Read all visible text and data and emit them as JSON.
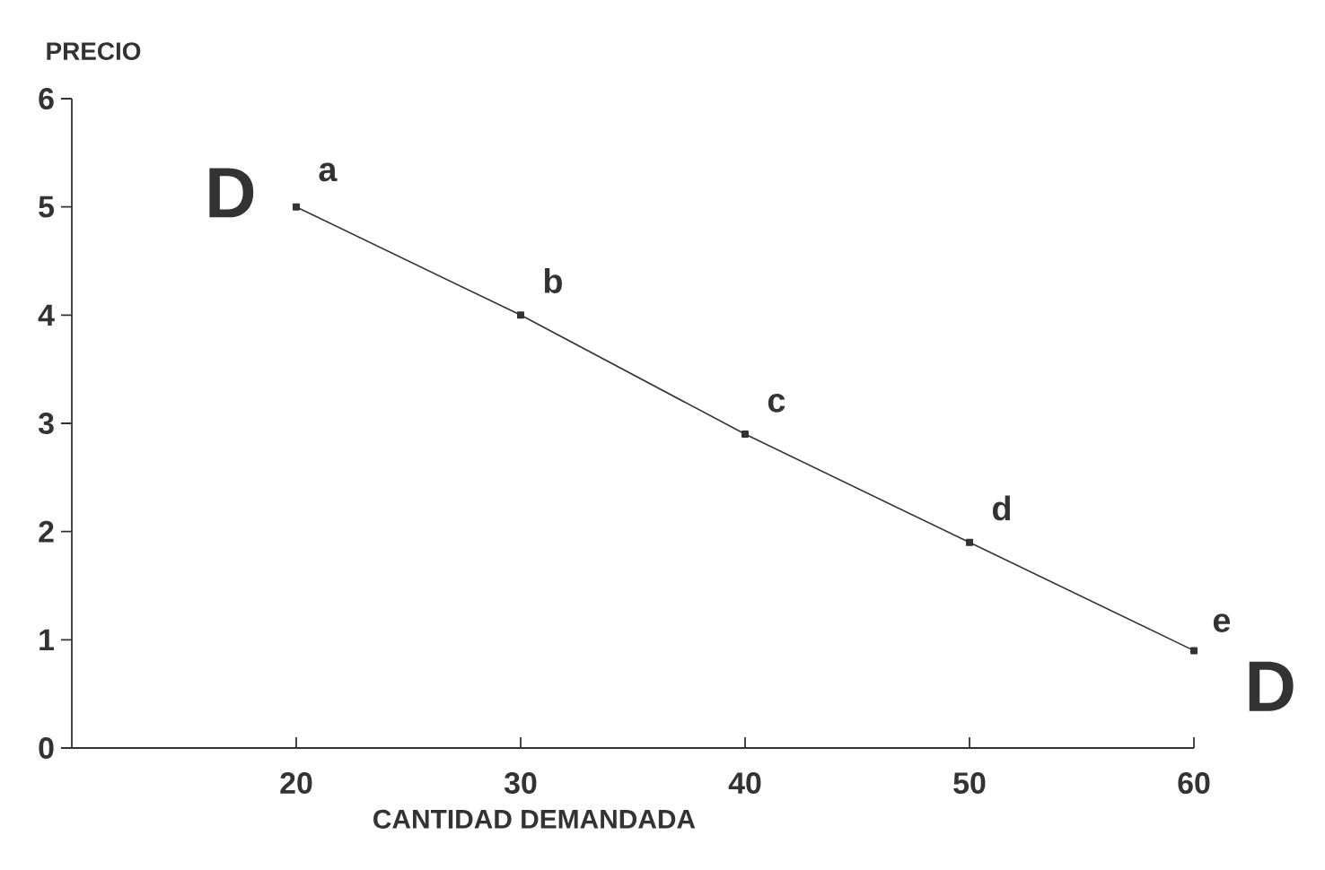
{
  "chart_data": {
    "type": "line",
    "xlabel": "CANTIDAD DEMANDADA",
    "ylabel": "PRECIO",
    "x": [
      20,
      30,
      40,
      50,
      60
    ],
    "series": [
      {
        "color": "#333333",
        "values": [
          5,
          4,
          2.9,
          1.9,
          0.9
        ]
      }
    ],
    "xlim": [
      10,
      60
    ],
    "ylim": [
      0,
      6
    ],
    "xticks": [
      20,
      30,
      40,
      50,
      60
    ],
    "yticks": [
      0,
      1,
      2,
      3,
      4,
      5,
      6
    ],
    "marker": "square",
    "line_style": "solid",
    "grid": false,
    "annotations": [
      {
        "text": "a",
        "x": 20,
        "y": 5
      },
      {
        "text": "b",
        "x": 30,
        "y": 4
      },
      {
        "text": "c",
        "x": 40,
        "y": 2.9
      },
      {
        "text": "d",
        "x": 50,
        "y": 1.9
      },
      {
        "text": "e",
        "x": 60,
        "y": 0.9
      },
      {
        "text": "D",
        "x": 20,
        "y": 5
      },
      {
        "text": "D",
        "x": 60,
        "y": 0.9
      }
    ]
  }
}
